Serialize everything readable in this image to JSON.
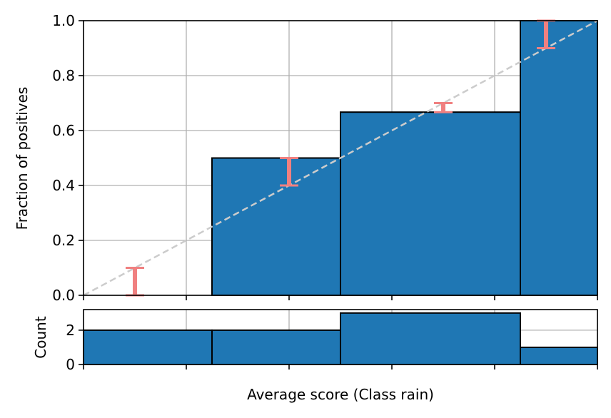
{
  "chart_data": [
    {
      "type": "bar",
      "panel": "calibration",
      "xlabel": "",
      "ylabel": "Fraction of positives",
      "xlim": [
        0,
        1
      ],
      "ylim": [
        0,
        1
      ],
      "grid": true,
      "bins": [
        {
          "x0": 0.0,
          "x1": 0.25,
          "value": 0.0
        },
        {
          "x0": 0.25,
          "x1": 0.5,
          "value": 0.5
        },
        {
          "x0": 0.5,
          "x1": 0.85,
          "value": 0.667
        },
        {
          "x0": 0.85,
          "x1": 1.0,
          "value": 1.0
        }
      ],
      "error_bars": [
        {
          "x": 0.1,
          "low": 0.0,
          "high": 0.1
        },
        {
          "x": 0.4,
          "low": 0.4,
          "high": 0.5
        },
        {
          "x": 0.7,
          "low": 0.667,
          "high": 0.7
        },
        {
          "x": 0.9,
          "low": 0.9,
          "high": 1.0
        }
      ],
      "reference_line": {
        "x": [
          0,
          1
        ],
        "y": [
          0,
          1
        ],
        "style": "dashed",
        "color": "#cccccc"
      },
      "yticks": [
        "0.0",
        "0.2",
        "0.4",
        "0.6",
        "0.8",
        "1.0"
      ],
      "ytick_values": [
        0,
        0.2,
        0.4,
        0.6,
        0.8,
        1.0
      ],
      "xtick_values": [
        0,
        0.2,
        0.4,
        0.6,
        0.8,
        1.0
      ],
      "colors": {
        "bar": "#1f77b4",
        "error": "#f08080",
        "grid": "#b0b0b0"
      }
    },
    {
      "type": "bar",
      "panel": "count",
      "xlabel": "Average score (Class rain)",
      "ylabel": "Count",
      "xlim": [
        0,
        1
      ],
      "ylim": [
        0,
        3.2
      ],
      "grid": true,
      "bins": [
        {
          "x0": 0.0,
          "x1": 0.25,
          "value": 2
        },
        {
          "x0": 0.25,
          "x1": 0.5,
          "value": 2
        },
        {
          "x0": 0.5,
          "x1": 0.85,
          "value": 3
        },
        {
          "x0": 0.85,
          "x1": 1.0,
          "value": 1
        }
      ],
      "yticks": [
        "0",
        "2"
      ],
      "ytick_values": [
        0,
        2
      ],
      "xtick_values": [
        0,
        0.2,
        0.4,
        0.6,
        0.8,
        1.0
      ],
      "colors": {
        "bar": "#1f77b4",
        "grid": "#b0b0b0"
      }
    }
  ]
}
